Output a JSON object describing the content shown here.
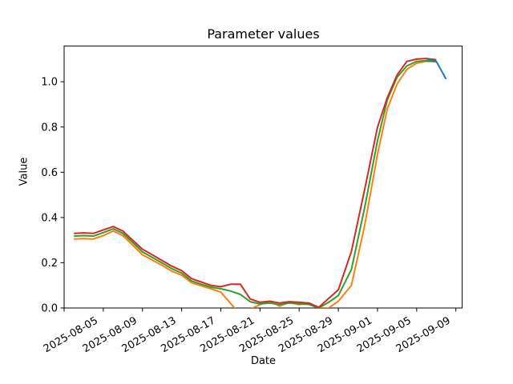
{
  "figure": {
    "title": "Parameter values",
    "xlabel": "Date",
    "ylabel": "Value",
    "background": "#ffffff"
  },
  "chart_data": {
    "type": "line",
    "title": "Parameter values",
    "xlabel": "Date",
    "ylabel": "Value",
    "ylim": [
      0.0,
      1.156
    ],
    "xlim_dates": [
      "2025-08-01",
      "2025-09-10"
    ],
    "grid": false,
    "legend": "none",
    "y_ticks": [
      0.0,
      0.2,
      0.4,
      0.6,
      0.8,
      1.0
    ],
    "x_ticks": [
      {
        "date": "2025-08-01",
        "label": ""
      },
      {
        "date": "2025-08-05",
        "label": "2025-08-05"
      },
      {
        "date": "2025-08-09",
        "label": "2025-08-09"
      },
      {
        "date": "2025-08-13",
        "label": "2025-08-13"
      },
      {
        "date": "2025-08-17",
        "label": "2025-08-17"
      },
      {
        "date": "2025-08-21",
        "label": "2025-08-21"
      },
      {
        "date": "2025-08-25",
        "label": "2025-08-25"
      },
      {
        "date": "2025-08-29",
        "label": "2025-08-29"
      },
      {
        "date": "2025-09-01",
        "label": "2025-09-01"
      },
      {
        "date": "2025-09-05",
        "label": "2025-09-05"
      },
      {
        "date": "2025-09-09",
        "label": "2025-09-09"
      }
    ],
    "tick_label_rotation_deg": 30,
    "series": [
      {
        "name": "series-orange",
        "color": "#ff7f0e",
        "points": [
          [
            "2025-08-02",
            0.305
          ],
          [
            "2025-08-03",
            0.307
          ],
          [
            "2025-08-04",
            0.305
          ],
          [
            "2025-08-05",
            0.32
          ],
          [
            "2025-08-06",
            0.34
          ],
          [
            "2025-08-07",
            0.32
          ],
          [
            "2025-08-08",
            0.278
          ],
          [
            "2025-08-09",
            0.235
          ],
          [
            "2025-08-10",
            0.212
          ],
          [
            "2025-08-11",
            0.188
          ],
          [
            "2025-08-12",
            0.163
          ],
          [
            "2025-08-13",
            0.145
          ],
          [
            "2025-08-14",
            0.112
          ],
          [
            "2025-08-15",
            0.098
          ],
          [
            "2025-08-16",
            0.085
          ],
          [
            "2025-08-17",
            0.07
          ],
          [
            "2025-08-18",
            0.02
          ],
          [
            "2025-08-19",
            -0.03
          ],
          [
            "2025-08-20",
            -0.005
          ],
          [
            "2025-08-21",
            0.015
          ],
          [
            "2025-08-22",
            0.03
          ],
          [
            "2025-08-23",
            0.008
          ],
          [
            "2025-08-24",
            0.025
          ],
          [
            "2025-08-25",
            0.015
          ],
          [
            "2025-08-26",
            0.02
          ],
          [
            "2025-08-27",
            0.0
          ],
          [
            "2025-08-28",
            0.0
          ],
          [
            "2025-08-29",
            0.03
          ],
          [
            "2025-08-30",
            0.1
          ],
          [
            "2025-08-31",
            0.36
          ],
          [
            "2025-09-01",
            0.68
          ],
          [
            "2025-09-02",
            0.88
          ],
          [
            "2025-09-03",
            0.99
          ],
          [
            "2025-09-04",
            1.055
          ],
          [
            "2025-09-05",
            1.082
          ],
          [
            "2025-09-06",
            1.09
          ],
          [
            "2025-09-07",
            1.088
          ]
        ]
      },
      {
        "name": "series-green",
        "color": "#2ca02c",
        "points": [
          [
            "2025-08-02",
            0.318
          ],
          [
            "2025-08-03",
            0.32
          ],
          [
            "2025-08-04",
            0.318
          ],
          [
            "2025-08-05",
            0.333
          ],
          [
            "2025-08-06",
            0.35
          ],
          [
            "2025-08-07",
            0.33
          ],
          [
            "2025-08-08",
            0.29
          ],
          [
            "2025-08-09",
            0.248
          ],
          [
            "2025-08-10",
            0.224
          ],
          [
            "2025-08-11",
            0.199
          ],
          [
            "2025-08-12",
            0.174
          ],
          [
            "2025-08-13",
            0.154
          ],
          [
            "2025-08-14",
            0.12
          ],
          [
            "2025-08-15",
            0.105
          ],
          [
            "2025-08-16",
            0.092
          ],
          [
            "2025-08-17",
            0.085
          ],
          [
            "2025-08-18",
            0.075
          ],
          [
            "2025-08-19",
            0.06
          ],
          [
            "2025-08-20",
            0.028
          ],
          [
            "2025-08-21",
            0.018
          ],
          [
            "2025-08-22",
            0.022
          ],
          [
            "2025-08-23",
            0.015
          ],
          [
            "2025-08-24",
            0.022
          ],
          [
            "2025-08-25",
            0.018
          ],
          [
            "2025-08-26",
            0.016
          ],
          [
            "2025-08-27",
            0.0
          ],
          [
            "2025-08-28",
            0.025
          ],
          [
            "2025-08-29",
            0.055
          ],
          [
            "2025-08-30",
            0.17
          ],
          [
            "2025-08-31",
            0.44
          ],
          [
            "2025-09-01",
            0.74
          ],
          [
            "2025-09-02",
            0.92
          ],
          [
            "2025-09-03",
            1.02
          ],
          [
            "2025-09-04",
            1.07
          ],
          [
            "2025-09-05",
            1.09
          ],
          [
            "2025-09-06",
            1.093
          ],
          [
            "2025-09-07",
            1.09
          ]
        ]
      },
      {
        "name": "series-red",
        "color": "#d62728",
        "points": [
          [
            "2025-08-02",
            0.33
          ],
          [
            "2025-08-03",
            0.332
          ],
          [
            "2025-08-04",
            0.33
          ],
          [
            "2025-08-05",
            0.345
          ],
          [
            "2025-08-06",
            0.36
          ],
          [
            "2025-08-07",
            0.34
          ],
          [
            "2025-08-08",
            0.3
          ],
          [
            "2025-08-09",
            0.26
          ],
          [
            "2025-08-10",
            0.235
          ],
          [
            "2025-08-11",
            0.21
          ],
          [
            "2025-08-12",
            0.185
          ],
          [
            "2025-08-13",
            0.165
          ],
          [
            "2025-08-14",
            0.13
          ],
          [
            "2025-08-15",
            0.115
          ],
          [
            "2025-08-16",
            0.1
          ],
          [
            "2025-08-17",
            0.094
          ],
          [
            "2025-08-18",
            0.105
          ],
          [
            "2025-08-19",
            0.105
          ],
          [
            "2025-08-20",
            0.04
          ],
          [
            "2025-08-21",
            0.025
          ],
          [
            "2025-08-22",
            0.03
          ],
          [
            "2025-08-23",
            0.022
          ],
          [
            "2025-08-24",
            0.028
          ],
          [
            "2025-08-25",
            0.025
          ],
          [
            "2025-08-26",
            0.022
          ],
          [
            "2025-08-27",
            0.003
          ],
          [
            "2025-08-28",
            0.042
          ],
          [
            "2025-08-29",
            0.08
          ],
          [
            "2025-08-30",
            0.25
          ],
          [
            "2025-08-31",
            0.52
          ],
          [
            "2025-09-01",
            0.8
          ],
          [
            "2025-09-02",
            0.93
          ],
          [
            "2025-09-03",
            1.03
          ],
          [
            "2025-09-04",
            1.09
          ],
          [
            "2025-09-05",
            1.1
          ],
          [
            "2025-09-06",
            1.103
          ],
          [
            "2025-09-07",
            1.097
          ]
        ]
      },
      {
        "name": "series-blue",
        "color": "#1f77b4",
        "points": [
          [
            "2025-09-06",
            1.102
          ],
          [
            "2025-09-07",
            1.09
          ],
          [
            "2025-09-08",
            1.012
          ]
        ]
      }
    ]
  }
}
